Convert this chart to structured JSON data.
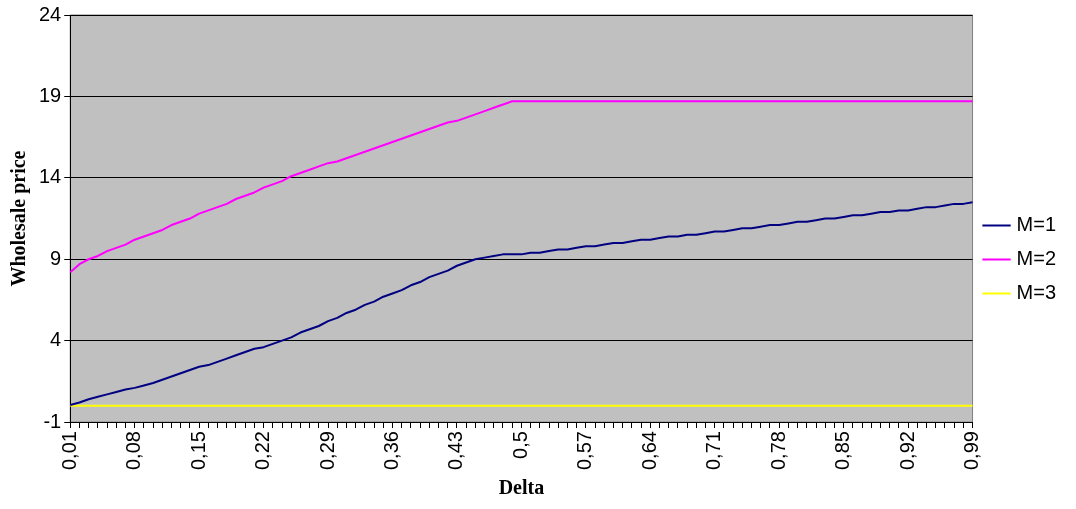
{
  "chart_data": {
    "type": "line",
    "xlabel": "Delta",
    "ylabel": "Wholesale price",
    "categories": [
      "0,01",
      null,
      null,
      null,
      null,
      null,
      null,
      "0,08",
      null,
      null,
      null,
      null,
      null,
      null,
      "0,15",
      null,
      null,
      null,
      null,
      null,
      null,
      "0,22",
      null,
      null,
      null,
      null,
      null,
      null,
      "0,29",
      null,
      null,
      null,
      null,
      null,
      null,
      "0,36",
      null,
      null,
      null,
      null,
      null,
      null,
      "0,43",
      null,
      null,
      null,
      null,
      null,
      null,
      "0,5",
      null,
      null,
      null,
      null,
      null,
      null,
      "0,57",
      null,
      null,
      null,
      null,
      null,
      null,
      "0,64",
      null,
      null,
      null,
      null,
      null,
      null,
      "0,71",
      null,
      null,
      null,
      null,
      null,
      null,
      "0,78",
      null,
      null,
      null,
      null,
      null,
      null,
      "0,85",
      null,
      null,
      null,
      null,
      null,
      null,
      "0,92",
      null,
      null,
      null,
      null,
      null,
      null,
      "0,99"
    ],
    "series": [
      {
        "name": "M=1",
        "color": "#000080",
        "values": [
          0.05,
          0.2,
          0.4,
          0.55,
          0.7,
          0.85,
          1.0,
          1.1,
          1.25,
          1.4,
          1.6,
          1.8,
          2.0,
          2.2,
          2.4,
          2.5,
          2.7,
          2.9,
          3.1,
          3.3,
          3.5,
          3.6,
          3.8,
          4.0,
          4.2,
          4.5,
          4.7,
          4.9,
          5.2,
          5.4,
          5.7,
          5.9,
          6.2,
          6.4,
          6.7,
          6.9,
          7.1,
          7.4,
          7.6,
          7.9,
          8.1,
          8.3,
          8.6,
          8.8,
          9.0,
          9.1,
          9.2,
          9.3,
          9.3,
          9.3,
          9.4,
          9.4,
          9.5,
          9.6,
          9.6,
          9.7,
          9.8,
          9.8,
          9.9,
          10.0,
          10.0,
          10.1,
          10.2,
          10.2,
          10.3,
          10.4,
          10.4,
          10.5,
          10.5,
          10.6,
          10.7,
          10.7,
          10.8,
          10.9,
          10.9,
          11.0,
          11.1,
          11.1,
          11.2,
          11.3,
          11.3,
          11.4,
          11.5,
          11.5,
          11.6,
          11.7,
          11.7,
          11.8,
          11.9,
          11.9,
          12.0,
          12.0,
          12.1,
          12.2,
          12.2,
          12.3,
          12.4,
          12.4,
          12.5
        ]
      },
      {
        "name": "M=2",
        "color": "#ff00ff",
        "values": [
          8.2,
          8.7,
          9.0,
          9.2,
          9.5,
          9.7,
          9.9,
          10.2,
          10.4,
          10.6,
          10.8,
          11.1,
          11.3,
          11.5,
          11.8,
          12.0,
          12.2,
          12.4,
          12.7,
          12.9,
          13.1,
          13.4,
          13.6,
          13.8,
          14.1,
          14.3,
          14.5,
          14.7,
          14.9,
          15.0,
          15.2,
          15.4,
          15.6,
          15.8,
          16.0,
          16.2,
          16.4,
          16.6,
          16.8,
          17.0,
          17.2,
          17.4,
          17.5,
          17.7,
          17.9,
          18.1,
          18.3,
          18.5,
          18.7,
          18.7,
          18.7,
          18.7,
          18.7,
          18.7,
          18.7,
          18.7,
          18.7,
          18.7,
          18.7,
          18.7,
          18.7,
          18.7,
          18.7,
          18.7,
          18.7,
          18.7,
          18.7,
          18.7,
          18.7,
          18.7,
          18.7,
          18.7,
          18.7,
          18.7,
          18.7,
          18.7,
          18.7,
          18.7,
          18.7,
          18.7,
          18.7,
          18.7,
          18.7,
          18.7,
          18.7,
          18.7,
          18.7,
          18.7,
          18.7,
          18.7,
          18.7,
          18.7,
          18.7,
          18.7,
          18.7,
          18.7,
          18.7,
          18.7,
          18.7
        ]
      },
      {
        "name": "M=3",
        "color": "#ffff00",
        "values": [
          0,
          0,
          0,
          0,
          0,
          0,
          0,
          0,
          0,
          0,
          0,
          0,
          0,
          0,
          0,
          0,
          0,
          0,
          0,
          0,
          0,
          0,
          0,
          0,
          0,
          0,
          0,
          0,
          0,
          0,
          0,
          0,
          0,
          0,
          0,
          0,
          0,
          0,
          0,
          0,
          0,
          0,
          0,
          0,
          0,
          0,
          0,
          0,
          0,
          0,
          0,
          0,
          0,
          0,
          0,
          0,
          0,
          0,
          0,
          0,
          0,
          0,
          0,
          0,
          0,
          0,
          0,
          0,
          0,
          0,
          0,
          0,
          0,
          0,
          0,
          0,
          0,
          0,
          0,
          0,
          0,
          0,
          0,
          0,
          0,
          0,
          0,
          0,
          0,
          0,
          0,
          0,
          0,
          0,
          0,
          0,
          0,
          0,
          0
        ]
      }
    ],
    "ylim": [
      -1,
      24
    ],
    "yticks": [
      -1,
      4,
      9,
      14,
      19,
      24
    ],
    "grid": "y",
    "legend": "right",
    "marker": "none",
    "line_style": "solid"
  }
}
